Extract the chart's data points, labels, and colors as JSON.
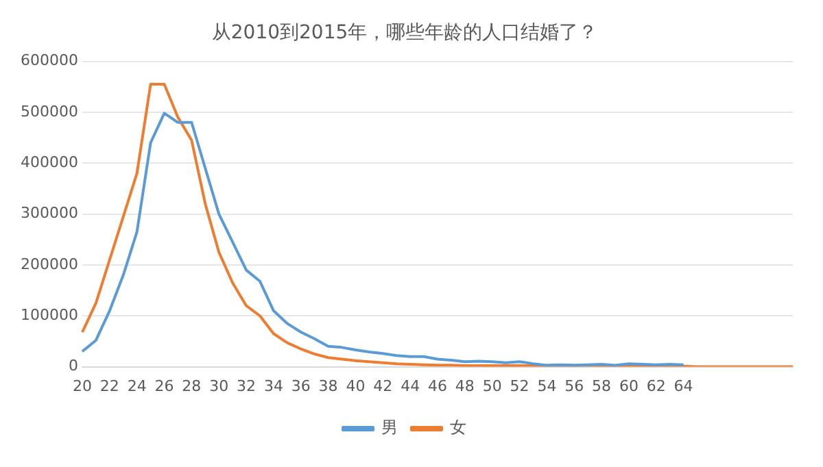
{
  "chart_data": {
    "type": "line",
    "title": "从2010到2015年，哪些年龄的人口结婚了？",
    "categories": [
      "20",
      null,
      "22",
      null,
      "24",
      null,
      "26",
      null,
      "28",
      null,
      "30",
      null,
      "32",
      null,
      "34",
      null,
      "36",
      null,
      "38",
      null,
      "40",
      null,
      "42",
      null,
      "44",
      null,
      "46",
      null,
      "48",
      null,
      "50",
      null,
      "52",
      null,
      "54",
      null,
      "56",
      null,
      "58",
      null,
      "60",
      null,
      "62",
      null,
      "64",
      null,
      null,
      null,
      null,
      null,
      null,
      null,
      null
    ],
    "series": [
      {
        "name": "男",
        "color": "#5b9bd5",
        "values": [
          30000,
          52000,
          110000,
          180000,
          265000,
          440000,
          498000,
          480000,
          480000,
          390000,
          300000,
          245000,
          190000,
          168000,
          110000,
          85000,
          68000,
          55000,
          40000,
          38000,
          33000,
          29000,
          26000,
          22000,
          20000,
          20000,
          15000,
          13000,
          10000,
          11000,
          10000,
          8000,
          10000,
          6000,
          3000,
          4000,
          3000,
          4000,
          5000,
          3000,
          6000,
          5000,
          4000,
          5000,
          4000,
          null,
          null,
          null,
          null,
          null,
          null,
          null,
          null
        ]
      },
      {
        "name": "女",
        "color": "#ed7d31",
        "values": [
          68000,
          125000,
          210000,
          295000,
          380000,
          555000,
          555000,
          490000,
          445000,
          320000,
          225000,
          165000,
          120000,
          100000,
          65000,
          47000,
          35000,
          25000,
          18000,
          15000,
          12000,
          10000,
          8000,
          6000,
          5000,
          4000,
          3000,
          3000,
          2000,
          2000,
          2000,
          2000,
          2000,
          2000,
          1000,
          1000,
          1000,
          1000,
          1000,
          1000,
          1000,
          1000,
          1000,
          1000,
          1000,
          0,
          0,
          0,
          0,
          0,
          0,
          0,
          0
        ]
      }
    ],
    "ylim": [
      0,
      600000
    ],
    "yticks": [
      0,
      100000,
      200000,
      300000,
      400000,
      500000,
      600000
    ],
    "grid": "y",
    "legend": "bottom",
    "marker": "none",
    "line_style": "solid"
  }
}
